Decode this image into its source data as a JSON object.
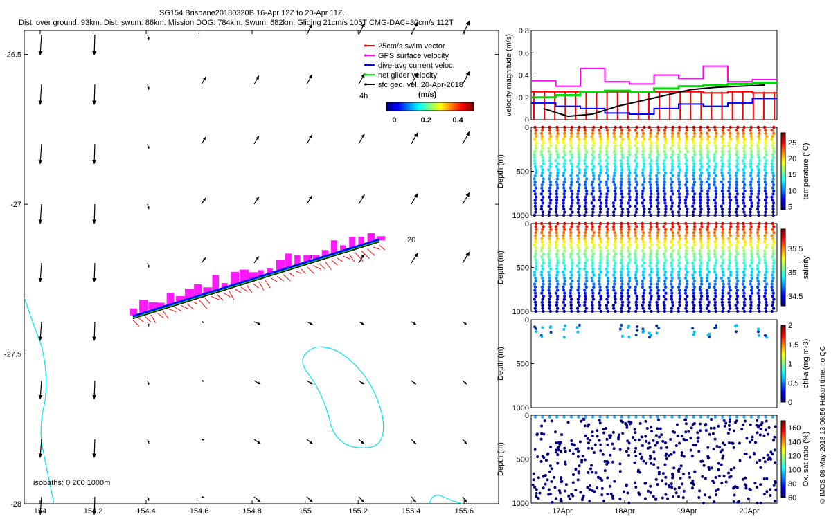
{
  "header": {
    "line1": "SG154 Brisbane20180320B 16-Apr 12Z to 20-Apr 11Z.",
    "line2": "Dist. over ground: 93km. Dist. swum: 86km. Mission DOG: 784km. Swum: 682km. Gliding 21cm/s 105T CMG-DAC=30cm/s 112T"
  },
  "credit": "© IMOS 08-May-2018 13:06:56 Hobart time. no QC",
  "chart_data": [
    {
      "type": "vector_map",
      "x_ticks": [
        "154",
        "154.2",
        "154.4",
        "154.6",
        "154.8",
        "155",
        "155.2",
        "155.4",
        "155.6"
      ],
      "y_ticks": [
        "-26.5",
        "-27",
        "-27.5",
        "-28"
      ],
      "xlim": [
        153.94,
        155.73
      ],
      "ylim": [
        -28.0,
        -26.42
      ],
      "legend": {
        "placement": "top-right",
        "entries": [
          {
            "label": "25cm/s swim vector",
            "color": "#ff0000"
          },
          {
            "label": "GPS surface velocity",
            "color": "#ff00ff"
          },
          {
            "label": "dive-avg current veloc.",
            "color": "#0000ff"
          },
          {
            "label": "net glider velocity",
            "color": "#00ee00"
          },
          {
            "label": "sfc geo. vel. 20-Apr-2018",
            "color": "#000000"
          }
        ]
      },
      "colorbar": {
        "title": "(m/s)",
        "ticks": [
          "0",
          "0.2",
          "0.4"
        ],
        "range": [
          -0.05,
          0.5
        ]
      },
      "labels": {
        "track_start": "4h",
        "day_label": "20",
        "isobaths": "isobaths: 0   200   1000m"
      },
      "track": {
        "start": [
          154.35,
          -27.38
        ],
        "end": [
          155.28,
          -27.13
        ]
      }
    },
    {
      "type": "line",
      "ylabel": "velocity magnitude (m/s)",
      "ylim": [
        0,
        0.8
      ],
      "y_ticks": [
        "0",
        "0.2",
        "0.4",
        "0.6",
        "0.8"
      ],
      "series": [
        {
          "name": "swim",
          "color": "#ff0000",
          "values": [
            0.25,
            0.25,
            0.25,
            0.25,
            0.25,
            0.25,
            0.25,
            0.24,
            0.25,
            0.24
          ]
        },
        {
          "name": "GPS surface",
          "color": "#ff00ff",
          "values": [
            0.35,
            0.3,
            0.46,
            0.34,
            0.32,
            0.4,
            0.37,
            0.48,
            0.34,
            0.36
          ]
        },
        {
          "name": "dive-avg current",
          "color": "#0000ff",
          "values": [
            0.15,
            0.12,
            0.1,
            0.06,
            0.05,
            0.1,
            0.14,
            0.12,
            0.15,
            0.19
          ]
        },
        {
          "name": "net glider",
          "color": "#00dd00",
          "values": [
            0.2,
            0.22,
            0.25,
            0.26,
            0.25,
            0.28,
            0.3,
            0.31,
            0.32,
            0.33
          ]
        },
        {
          "name": "sfc geo",
          "color": "#000000",
          "values": [
            0.1,
            0.03,
            0.05,
            0.12,
            0.17,
            0.22,
            0.27,
            0.29,
            0.3,
            0.31
          ]
        }
      ]
    },
    {
      "type": "scatter",
      "ylabel": "Depth (m)",
      "ylim": [
        1000,
        0
      ],
      "y_ticks": [
        "0",
        "500",
        "1000"
      ],
      "colorbar": {
        "label": "temperature (°C)",
        "ticks": [
          "5",
          "10",
          "15",
          "20",
          "25"
        ],
        "range": [
          4,
          28
        ]
      }
    },
    {
      "type": "scatter",
      "ylabel": "Depth (m)",
      "ylim": [
        1000,
        0
      ],
      "y_ticks": [
        "0",
        "500",
        "1000"
      ],
      "colorbar": {
        "label": "salinity",
        "ticks": [
          "34.5",
          "35",
          "35.5"
        ],
        "range": [
          34.3,
          35.9
        ]
      }
    },
    {
      "type": "scatter",
      "ylabel": "Depth (m)",
      "ylim": [
        1000,
        0
      ],
      "y_ticks": [
        "0",
        "500",
        "1000"
      ],
      "colorbar": {
        "label": "chl-a (mg m-3)",
        "ticks": [
          "0",
          "0.5",
          "1",
          "1.5",
          "2"
        ],
        "range": [
          0,
          2
        ]
      }
    },
    {
      "type": "scatter",
      "ylabel": "Depth (m)",
      "ylim": [
        1000,
        0
      ],
      "y_ticks": [
        "0",
        "500",
        "1000"
      ],
      "x_ticks": [
        "17Apr",
        "18Apr",
        "19Apr",
        "20Apr"
      ],
      "colorbar": {
        "label": "Ox. sat ratio (%)",
        "ticks": [
          "60",
          "80",
          "100",
          "120",
          "140",
          "160"
        ],
        "range": [
          60,
          170
        ]
      }
    }
  ]
}
